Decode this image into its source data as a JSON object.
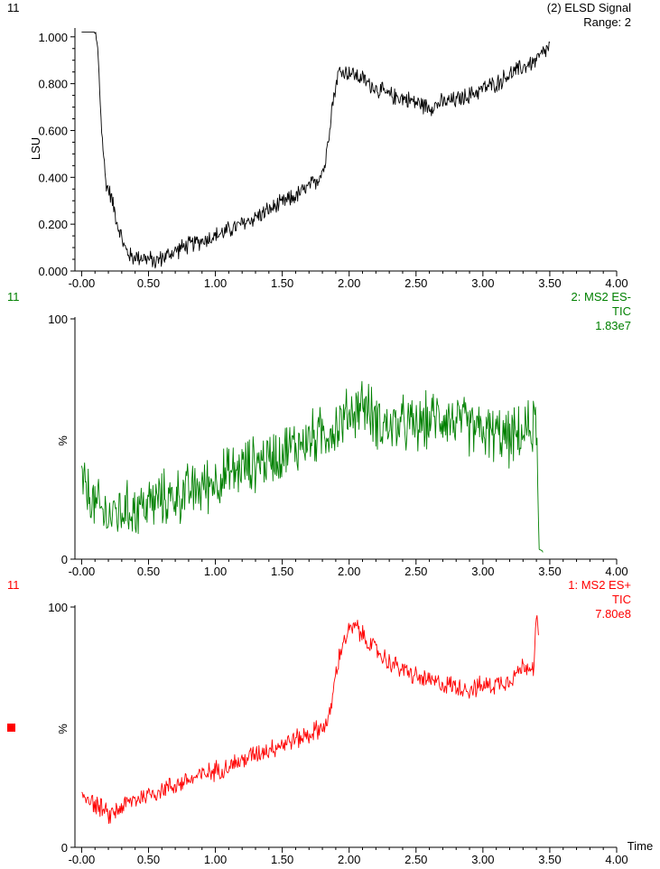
{
  "colors": {
    "axis": "#000000",
    "elsd": "#000000",
    "es_neg": "#008000",
    "es_pos": "#ff0000"
  },
  "chart_data": [
    {
      "type": "line",
      "id": "elsd",
      "function_number": "11",
      "title_lines": [
        "(2) ELSD Signal",
        "Range: 2"
      ],
      "xlabel": "",
      "ylabel": "LSU",
      "xlim": [
        -0.05,
        4.0
      ],
      "ylim": [
        0.0,
        1.03
      ],
      "x_ticks": [
        "-0.00",
        "0.50",
        "1.00",
        "1.50",
        "2.00",
        "2.50",
        "3.00",
        "3.50",
        "4.00"
      ],
      "y_ticks": [
        "0.000",
        "0.200",
        "0.400",
        "0.600",
        "0.800",
        "1.000"
      ],
      "series": [
        {
          "color": "#000000",
          "x": [
            0.0,
            0.1,
            0.12,
            0.15,
            0.18,
            0.22,
            0.27,
            0.32,
            0.37,
            0.45,
            0.55,
            0.65,
            0.75,
            0.85,
            1.0,
            1.2,
            1.4,
            1.6,
            1.75,
            1.82,
            1.87,
            1.92,
            2.0,
            2.1,
            2.2,
            2.3,
            2.4,
            2.5,
            2.6,
            2.7,
            2.8,
            2.9,
            3.0,
            3.1,
            3.2,
            3.3,
            3.4,
            3.5
          ],
          "y": [
            1.02,
            1.02,
            0.95,
            0.6,
            0.38,
            0.32,
            0.2,
            0.1,
            0.06,
            0.06,
            0.04,
            0.07,
            0.1,
            0.12,
            0.15,
            0.2,
            0.26,
            0.32,
            0.38,
            0.45,
            0.7,
            0.85,
            0.85,
            0.82,
            0.78,
            0.75,
            0.74,
            0.72,
            0.7,
            0.72,
            0.73,
            0.75,
            0.78,
            0.8,
            0.84,
            0.87,
            0.9,
            0.96
          ]
        }
      ]
    },
    {
      "type": "line",
      "id": "ms2_es_neg",
      "function_number": "11",
      "title_lines": [
        "2: MS2 ES-",
        "TIC",
        "1.83e7"
      ],
      "xlabel": "",
      "ylabel": "%",
      "xlim": [
        -0.05,
        4.0
      ],
      "ylim": [
        0,
        100
      ],
      "x_ticks": [
        "-0.00",
        "0.50",
        "1.00",
        "1.50",
        "2.00",
        "2.50",
        "3.00",
        "3.50",
        "4.00"
      ],
      "y_ticks": [
        "0",
        "100"
      ],
      "series": [
        {
          "color": "#008000",
          "x": [
            0.0,
            0.1,
            0.2,
            0.3,
            0.4,
            0.5,
            0.6,
            0.7,
            0.8,
            0.9,
            1.0,
            1.1,
            1.2,
            1.3,
            1.4,
            1.5,
            1.6,
            1.7,
            1.8,
            1.9,
            2.0,
            2.1,
            2.2,
            2.3,
            2.4,
            2.5,
            2.6,
            2.7,
            2.8,
            2.9,
            3.0,
            3.1,
            3.2,
            3.3,
            3.4,
            3.42,
            3.45
          ],
          "y": [
            32,
            22,
            18,
            20,
            21,
            23,
            25,
            26,
            28,
            30,
            33,
            35,
            38,
            40,
            42,
            45,
            47,
            50,
            52,
            55,
            60,
            65,
            58,
            55,
            56,
            55,
            58,
            60,
            57,
            55,
            53,
            52,
            50,
            52,
            57,
            4,
            3
          ]
        }
      ]
    },
    {
      "type": "line",
      "id": "ms2_es_pos",
      "function_number": "11",
      "title_lines": [
        "1: MS2 ES+",
        "TIC",
        "7.80e8"
      ],
      "xlabel": "Time",
      "ylabel": "%",
      "xlim": [
        -0.05,
        4.0
      ],
      "ylim": [
        0,
        100
      ],
      "x_ticks": [
        "-0.00",
        "0.50",
        "1.00",
        "1.50",
        "2.00",
        "2.50",
        "3.00",
        "3.50",
        "4.00"
      ],
      "y_ticks": [
        "0",
        "100"
      ],
      "series": [
        {
          "color": "#ff0000",
          "x": [
            0.0,
            0.05,
            0.1,
            0.15,
            0.2,
            0.25,
            0.3,
            0.4,
            0.5,
            0.6,
            0.7,
            0.8,
            0.9,
            1.0,
            1.1,
            1.2,
            1.3,
            1.4,
            1.5,
            1.6,
            1.7,
            1.8,
            1.85,
            1.9,
            1.95,
            2.0,
            2.05,
            2.1,
            2.2,
            2.3,
            2.4,
            2.5,
            2.6,
            2.7,
            2.8,
            2.9,
            3.0,
            3.1,
            3.2,
            3.3,
            3.38,
            3.4,
            3.42
          ],
          "y": [
            22,
            21,
            18,
            16,
            13,
            15,
            17,
            20,
            22,
            24,
            26,
            28,
            30,
            32,
            34,
            36,
            39,
            41,
            43,
            45,
            47,
            50,
            53,
            72,
            85,
            90,
            92,
            88,
            82,
            77,
            74,
            71,
            69,
            68,
            67,
            66,
            67,
            68,
            70,
            75,
            76,
            95,
            85
          ]
        }
      ]
    }
  ]
}
